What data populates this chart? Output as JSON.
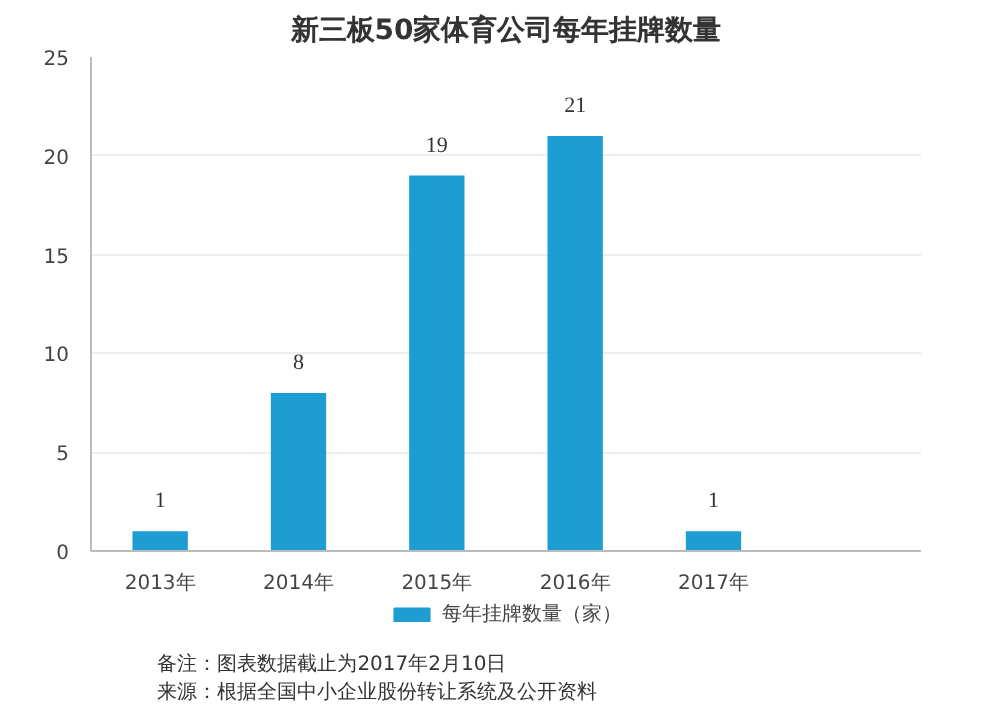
{
  "chart_data": {
    "type": "bar",
    "title": "新三板50家体育公司每年挂牌数量",
    "categories": [
      "2013年",
      "2014年",
      "2015年",
      "2016年",
      "2017年",
      null
    ],
    "series": [
      {
        "name": "每年挂牌数量（家）",
        "color": "#1e9dd3",
        "values": [
          1,
          8,
          19,
          21,
          1,
          null
        ]
      }
    ],
    "ylim": [
      0,
      25
    ],
    "yticks": [
      0,
      5,
      10,
      15,
      20,
      25
    ],
    "grid": "y",
    "legend": "bottom",
    "data_labels": true,
    "annotations": [
      "备注：图表数据截止为2017年2月10日",
      "来源：根据全国中小企业股份转让系统及公开资料"
    ]
  }
}
